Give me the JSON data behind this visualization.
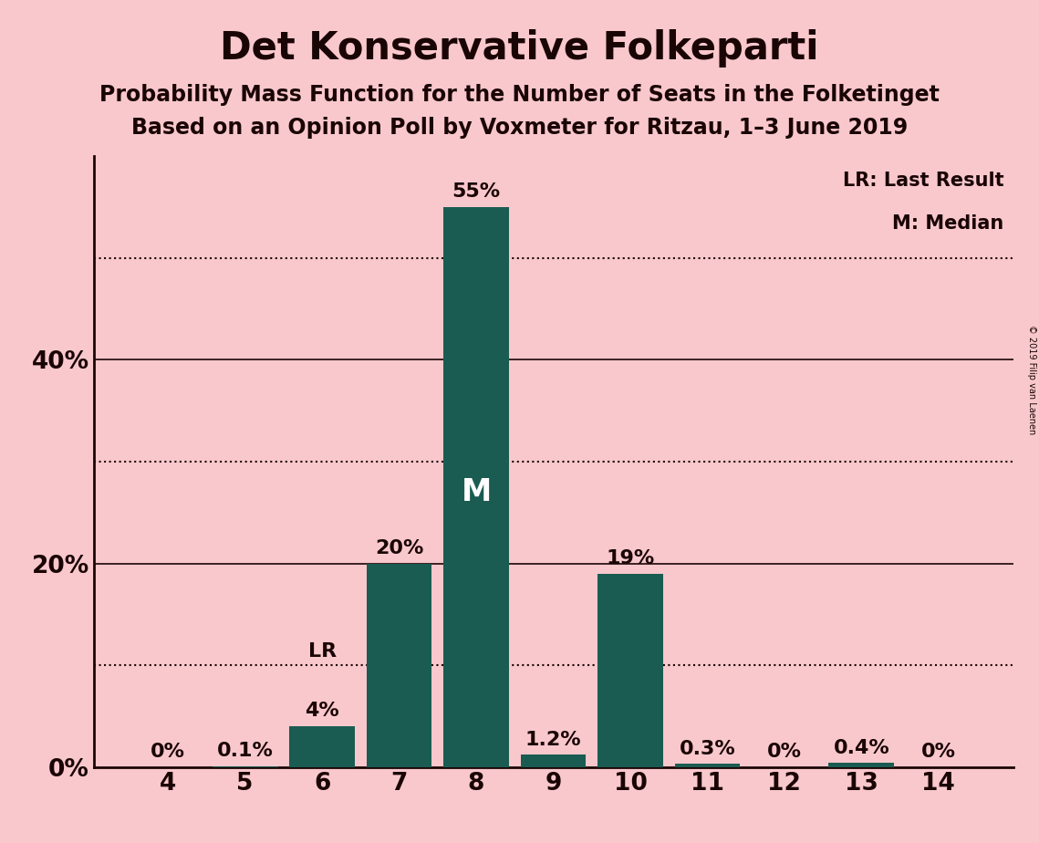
{
  "title": "Det Konservative Folkeparti",
  "subtitle1": "Probability Mass Function for the Number of Seats in the Folketinget",
  "subtitle2": "Based on an Opinion Poll by Voxmeter for Ritzau, 1–3 June 2019",
  "copyright": "© 2019 Filip van Laenen",
  "seats": [
    4,
    5,
    6,
    7,
    8,
    9,
    10,
    11,
    12,
    13,
    14
  ],
  "probabilities": [
    0.0,
    0.1,
    4.0,
    20.0,
    55.0,
    1.2,
    19.0,
    0.3,
    0.0,
    0.4,
    0.0
  ],
  "labels": [
    "0%",
    "0.1%",
    "4%",
    "20%",
    "55%",
    "1.2%",
    "19%",
    "0.3%",
    "0%",
    "0.4%",
    "0%"
  ],
  "bar_color": "#1a5c52",
  "background_color": "#f9c8cc",
  "text_color": "#1a0505",
  "lr_seat": 6,
  "median_seat": 8,
  "yticks": [
    0,
    20,
    40
  ],
  "ytick_labels": [
    "0%",
    "20%",
    "40%"
  ],
  "dotted_lines": [
    10,
    30,
    50
  ],
  "solid_lines": [
    20,
    40
  ],
  "ylim": [
    0,
    60
  ],
  "title_fontsize": 30,
  "subtitle_fontsize": 17,
  "label_fontsize": 16,
  "axis_fontsize": 19
}
